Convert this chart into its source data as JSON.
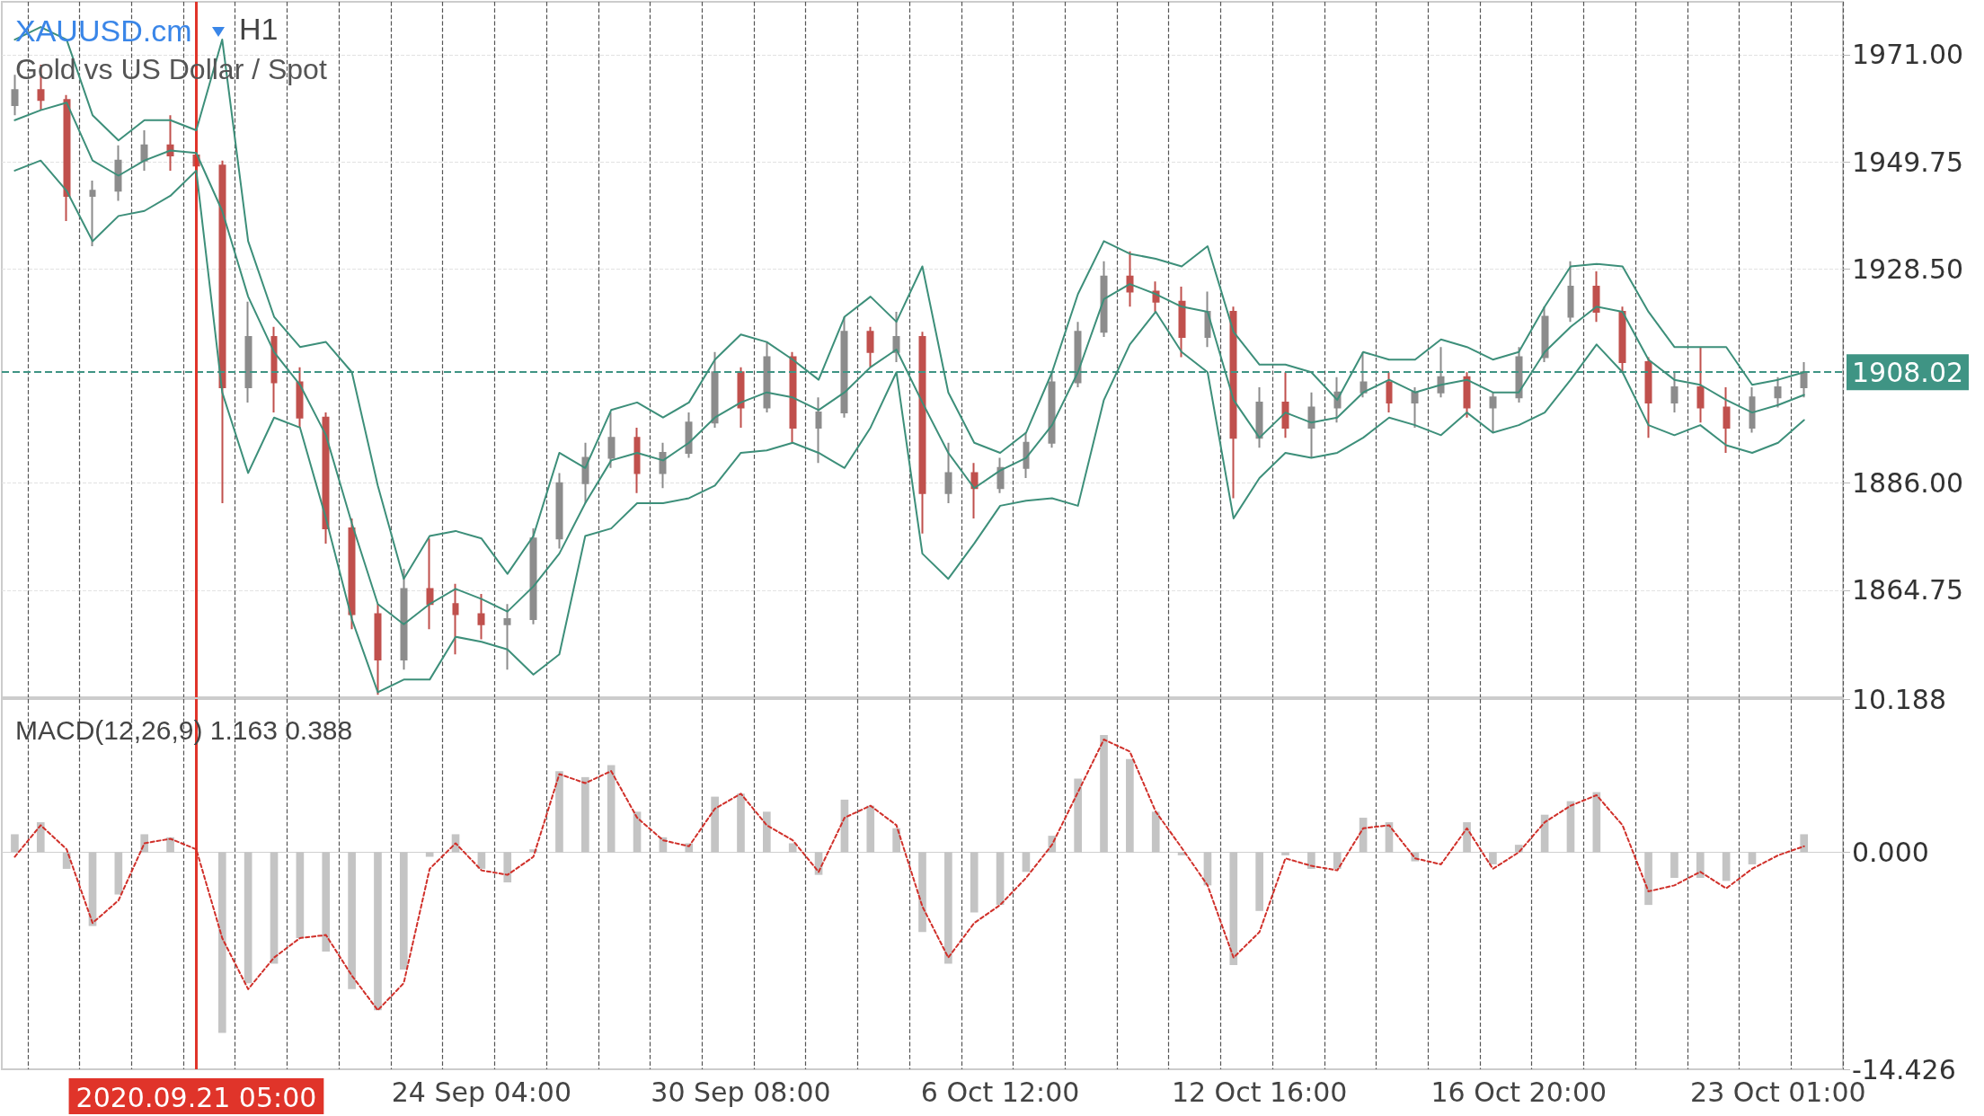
{
  "chart_data": [
    {
      "type": "candlestick",
      "title": "XAUUSD.cm",
      "subtitle": "Gold vs US Dollar / Spot",
      "annotations": [
        "H1"
      ],
      "categories": [
        null,
        null,
        null,
        null,
        null,
        null,
        null,
        "2020.09.21 05:00",
        null,
        null,
        null,
        null,
        null,
        null,
        null,
        null,
        null,
        null,
        "24 Sep 04:00",
        null,
        null,
        null,
        null,
        null,
        null,
        null,
        null,
        null,
        "30 Sep 08:00",
        null,
        null,
        null,
        null,
        null,
        null,
        null,
        null,
        null,
        "6 Oct 12:00",
        null,
        null,
        null,
        null,
        null,
        null,
        null,
        null,
        null,
        "12 Oct 16:00",
        null,
        null,
        null,
        null,
        null,
        null,
        null,
        null,
        null,
        "16 Oct 20:00",
        null,
        null,
        null,
        null,
        null,
        null,
        null,
        null,
        null,
        "23 Oct 01:00",
        null,
        null
      ],
      "tick_labels": "y",
      "grid": true,
      "marker": "none",
      "ylim": [
        1843.5,
        1981.5
      ],
      "yticks": [
        {
          "value": 1971,
          "label": "1971.00"
        },
        {
          "value": 1949.75,
          "label": "1949.75"
        },
        {
          "value": 1928.5,
          "label": "1928.50"
        },
        {
          "value": 1886,
          "label": "1886.00"
        },
        {
          "value": 1864.75,
          "label": "1864.75"
        }
      ],
      "ref_lines": [
        {
          "axis": "y",
          "value": 1908.02,
          "label": "1908.02",
          "color": "#3f9484",
          "line_style": "dashed"
        },
        {
          "axis": "x",
          "value": "2020.09.21 05:00",
          "color": "#e0342a",
          "line_style": "solid"
        }
      ],
      "series": [
        {
          "ohlc": [
            [
              1961,
              1967,
              1959,
              1964
            ],
            [
              1964,
              1969,
              1960,
              1962
            ],
            [
              1962,
              1963,
              1938,
              1943
            ],
            [
              1943,
              1946,
              1933,
              1944
            ],
            [
              1944,
              1953,
              1942,
              1950
            ],
            [
              1950,
              1956,
              1948,
              1953
            ],
            [
              1953,
              1959,
              1948,
              1951
            ],
            [
              1951,
              1956,
              1947,
              1949
            ],
            [
              1949,
              1950,
              1882,
              1905
            ],
            [
              1905,
              1922,
              1902,
              1915
            ],
            [
              1915,
              1917,
              1900,
              1906
            ],
            [
              1906,
              1909,
              1897,
              1899
            ],
            [
              1899,
              1900,
              1874,
              1877
            ],
            [
              1877,
              1879,
              1857,
              1860
            ],
            [
              1860,
              1862,
              1844,
              1851
            ],
            [
              1851,
              1869,
              1849,
              1865
            ],
            [
              1865,
              1875,
              1857,
              1862
            ],
            [
              1862,
              1866,
              1852,
              1860
            ],
            [
              1860,
              1864,
              1855,
              1858
            ],
            [
              1858,
              1862,
              1849,
              1859
            ],
            [
              1859,
              1877,
              1858,
              1875
            ],
            [
              1875,
              1888,
              1873,
              1886
            ],
            [
              1886,
              1894,
              1882,
              1891
            ],
            [
              1891,
              1900,
              1889,
              1895
            ],
            [
              1895,
              1897,
              1884,
              1888
            ],
            [
              1888,
              1894,
              1885,
              1892
            ],
            [
              1892,
              1900,
              1891,
              1898
            ],
            [
              1898,
              1912,
              1897,
              1908
            ],
            [
              1908,
              1909,
              1897,
              1901
            ],
            [
              1901,
              1914,
              1900,
              1911
            ],
            [
              1911,
              1912,
              1894,
              1897
            ],
            [
              1897,
              1903,
              1890,
              1900
            ],
            [
              1900,
              1919,
              1899,
              1916
            ],
            [
              1916,
              1917,
              1909,
              1912
            ],
            [
              1912,
              1920,
              1910,
              1915
            ],
            [
              1915,
              1916,
              1876,
              1884
            ],
            [
              1884,
              1894,
              1882,
              1888
            ],
            [
              1888,
              1890,
              1879,
              1885
            ],
            [
              1885,
              1891,
              1884,
              1889
            ],
            [
              1889,
              1896,
              1887,
              1894
            ],
            [
              1894,
              1908,
              1893,
              1906
            ],
            [
              1906,
              1918,
              1905,
              1916
            ],
            [
              1916,
              1930,
              1915,
              1927
            ],
            [
              1927,
              1932,
              1921,
              1924
            ],
            [
              1924,
              1926,
              1920,
              1922
            ],
            [
              1922,
              1925,
              1911,
              1915
            ],
            [
              1915,
              1924,
              1913,
              1920
            ],
            [
              1920,
              1921,
              1883,
              1895
            ],
            [
              1895,
              1905,
              1893,
              1902
            ],
            [
              1902,
              1908,
              1895,
              1897
            ],
            [
              1897,
              1904,
              1891,
              1901
            ],
            [
              1901,
              1907,
              1898,
              1904
            ],
            [
              1904,
              1912,
              1903,
              1906
            ],
            [
              1906,
              1908,
              1900,
              1902
            ],
            [
              1902,
              1905,
              1897,
              1904
            ],
            [
              1904,
              1913,
              1903,
              1907
            ],
            [
              1907,
              1908,
              1899,
              1901
            ],
            [
              1901,
              1904,
              1896,
              1903
            ],
            [
              1903,
              1913,
              1902,
              1911
            ],
            [
              1911,
              1921,
              1910,
              1919
            ],
            [
              1919,
              1930,
              1918,
              1925
            ],
            [
              1925,
              1928,
              1918,
              1920
            ],
            [
              1920,
              1921,
              1908,
              1910
            ],
            [
              1910,
              1911,
              1895,
              1902
            ],
            [
              1902,
              1908,
              1900,
              1905
            ],
            [
              1905,
              1913,
              1898,
              1901
            ],
            [
              1901,
              1905,
              1892,
              1897
            ],
            [
              1897,
              1905,
              1896,
              1903
            ],
            [
              1903,
              1907,
              1901,
              1905
            ],
            [
              1905,
              1910,
              1903,
              1908.02
            ],
            null
          ],
          "colors": [
            "#8c8c8c",
            "#c0504d",
            "#c0504d",
            "#8c8c8c",
            "#8c8c8c",
            "#8c8c8c",
            "#c0504d",
            "#c0504d",
            "#c0504d",
            "#8c8c8c",
            "#c0504d",
            "#c0504d",
            "#c0504d",
            "#c0504d",
            "#c0504d",
            "#8c8c8c",
            "#c0504d",
            "#c0504d",
            "#c0504d",
            "#8c8c8c",
            "#8c8c8c",
            "#8c8c8c",
            "#8c8c8c",
            "#8c8c8c",
            "#c0504d",
            "#8c8c8c",
            "#8c8c8c",
            "#8c8c8c",
            "#c0504d",
            "#8c8c8c",
            "#c0504d",
            "#8c8c8c",
            "#8c8c8c",
            "#c0504d",
            "#8c8c8c",
            "#c0504d",
            "#8c8c8c",
            "#c0504d",
            "#8c8c8c",
            "#8c8c8c",
            "#8c8c8c",
            "#8c8c8c",
            "#8c8c8c",
            "#c0504d",
            "#c0504d",
            "#c0504d",
            "#8c8c8c",
            "#c0504d",
            "#8c8c8c",
            "#c0504d",
            "#8c8c8c",
            "#8c8c8c",
            "#8c8c8c",
            "#c0504d",
            "#8c8c8c",
            "#8c8c8c",
            "#c0504d",
            "#8c8c8c",
            "#8c8c8c",
            "#8c8c8c",
            "#8c8c8c",
            "#c0504d",
            "#c0504d",
            "#c0504d",
            "#8c8c8c",
            "#c0504d",
            "#c0504d",
            "#8c8c8c",
            "#8c8c8c",
            "#8c8c8c",
            null
          ]
        },
        {
          "type": "line",
          "color": "#3d8f7a",
          "values": [
            1974,
            1976.5,
            1974,
            1959,
            1954,
            1958,
            1958,
            1956,
            1974,
            1934,
            1919,
            1913,
            1914,
            1908,
            1885.5,
            1867,
            1875.5,
            1876.5,
            1875,
            1868,
            1875.5,
            1892,
            1889,
            1900.5,
            1902,
            1899,
            1902,
            1910.5,
            1915.5,
            1914,
            1910.5,
            1906.5,
            1919,
            1923,
            1918,
            1929,
            1904,
            1894,
            1892,
            1896,
            1908,
            1923.5,
            1934,
            1931.5,
            1930.5,
            1929,
            1933,
            1916,
            1909.5,
            1909.5,
            1908,
            1902.5,
            1912,
            1910.5,
            1910.5,
            1914.5,
            1913,
            1910.5,
            1912,
            1921,
            1929,
            1929.5,
            1929,
            1920,
            1913,
            1913,
            1913,
            1905.5,
            1906.5,
            1908,
            null
          ]
        },
        {
          "type": "line",
          "color": "#3d8f7a",
          "values": [
            1958,
            1960,
            1961.5,
            1950,
            1947,
            1950,
            1952,
            1951.5,
            1940,
            1923,
            1912,
            1905.5,
            1895.5,
            1878,
            1862,
            1858,
            1862,
            1865,
            1863,
            1860.5,
            1865.5,
            1872,
            1882,
            1890.5,
            1892,
            1890.5,
            1894,
            1899,
            1902,
            1904,
            1903,
            1900.5,
            1904,
            1909,
            1912.5,
            1902,
            1892,
            1885,
            1888.5,
            1891,
            1897.5,
            1908,
            1922.5,
            1925.5,
            1923.5,
            1921,
            1920,
            1902.5,
            1895,
            1900,
            1898,
            1899,
            1904,
            1906.5,
            1904,
            1905.5,
            1906.5,
            1904,
            1904,
            1912,
            1917,
            1921,
            1920,
            1910.5,
            1906.5,
            1905.5,
            1902.5,
            1900,
            1901.5,
            1903.5,
            null
          ]
        },
        {
          "type": "line",
          "color": "#3d8f7a",
          "values": [
            1948,
            1950,
            1944,
            1934,
            1939,
            1940,
            1943,
            1948,
            1904,
            1888,
            1899,
            1897,
            1879,
            1859,
            1844.5,
            1847,
            1847,
            1855.5,
            1854.5,
            1853,
            1848,
            1852,
            1875.5,
            1877,
            1882,
            1882,
            1883,
            1885.5,
            1892,
            1892.5,
            1894,
            1892,
            1889,
            1897,
            1908,
            1872,
            1867,
            1874,
            1881.5,
            1882.5,
            1883,
            1881.5,
            1902.5,
            1913.5,
            1920,
            1912,
            1908,
            1879,
            1887,
            1892,
            1891,
            1892,
            1895,
            1899,
            1897.5,
            1895.5,
            1900,
            1896,
            1897.5,
            1900,
            1906.5,
            1913.5,
            1908,
            1897.5,
            1895.5,
            1897.5,
            1893.5,
            1892,
            1894,
            1898.5,
            null
          ]
        }
      ]
    },
    {
      "type": "bar",
      "title": "MACD(12,26,9) 1.163 0.388",
      "categories": [
        null,
        null,
        null,
        null,
        null,
        null,
        null,
        "2020.09.21 05:00",
        null,
        null,
        null,
        null,
        null,
        null,
        null,
        null,
        null,
        null,
        "24 Sep 04:00",
        null,
        null,
        null,
        null,
        null,
        null,
        null,
        null,
        null,
        "30 Sep 08:00",
        null,
        null,
        null,
        null,
        null,
        null,
        null,
        null,
        null,
        "6 Oct 12:00",
        null,
        null,
        null,
        null,
        null,
        null,
        null,
        null,
        null,
        "12 Oct 16:00",
        null,
        null,
        null,
        null,
        null,
        null,
        null,
        null,
        null,
        "16 Oct 20:00",
        null,
        null,
        null,
        null,
        null,
        null,
        null,
        null,
        null,
        "23 Oct 01:00",
        null,
        null
      ],
      "grid": "x",
      "marker": "none",
      "ylim": [
        -14.426,
        10.188
      ],
      "yticks": [
        {
          "value": 10.188,
          "label": "10.188"
        },
        {
          "value": 0,
          "label": "0.000"
        },
        {
          "value": -14.426,
          "label": "-14.426"
        }
      ],
      "ref_lines": [
        {
          "axis": "x",
          "value": "2020.09.21 05:00",
          "color": "#e0342a",
          "line_style": "solid"
        }
      ],
      "series": [
        {
          "color": "#c4c4c4",
          "values": [
            1.2,
            2.0,
            -1.1,
            -4.9,
            -2.8,
            1.2,
            1.0,
            null,
            -12.0,
            -8.7,
            -7.4,
            -5.7,
            -6.6,
            -9.1,
            -10.5,
            -7.8,
            -0.3,
            1.2,
            -1.1,
            -2.0,
            0.2,
            5.4,
            5.0,
            5.8,
            2.7,
            1.0,
            0.6,
            3.7,
            3.9,
            2.7,
            0.6,
            -1.5,
            3.5,
            3.1,
            1.6,
            -5.3,
            -7.4,
            -4.0,
            -3.5,
            -1.3,
            1.1,
            4.9,
            7.8,
            6.2,
            2.7,
            -0.2,
            -2.2,
            -7.5,
            -3.9,
            -0.2,
            -1.1,
            -1.1,
            2.3,
            2.0,
            -0.6,
            0.0,
            2.0,
            -0.8,
            0.5,
            2.5,
            3.4,
            4.0,
            0.0,
            -3.5,
            -1.7,
            -1.7,
            -1.9,
            -0.8,
            0.0,
            1.2,
            null
          ]
        },
        {
          "type": "line",
          "color": "#d0302a",
          "line_style": "dashed",
          "values": [
            -0.3,
            1.8,
            0.2,
            -4.7,
            -3.2,
            0.6,
            0.9,
            0.2,
            -5.7,
            -9.1,
            -7.0,
            -5.7,
            -5.5,
            -8.2,
            -10.5,
            -8.7,
            -1.1,
            0.6,
            -1.2,
            -1.5,
            -0.3,
            5.2,
            4.6,
            5.4,
            2.3,
            0.8,
            0.4,
            2.9,
            3.9,
            1.8,
            0.8,
            -1.3,
            2.3,
            3.1,
            1.8,
            -3.6,
            -7.0,
            -4.7,
            -3.5,
            -1.7,
            0.5,
            4.0,
            7.5,
            6.7,
            2.7,
            0.3,
            -2.2,
            -7.0,
            -5.3,
            -0.4,
            -0.9,
            -1.2,
            1.6,
            1.8,
            -0.4,
            -0.8,
            1.6,
            -1.1,
            0.0,
            2.0,
            3.1,
            3.8,
            1.8,
            -2.6,
            -2.2,
            -1.3,
            -2.4,
            -1.1,
            -0.2,
            0.4,
            null
          ]
        }
      ]
    }
  ]
}
